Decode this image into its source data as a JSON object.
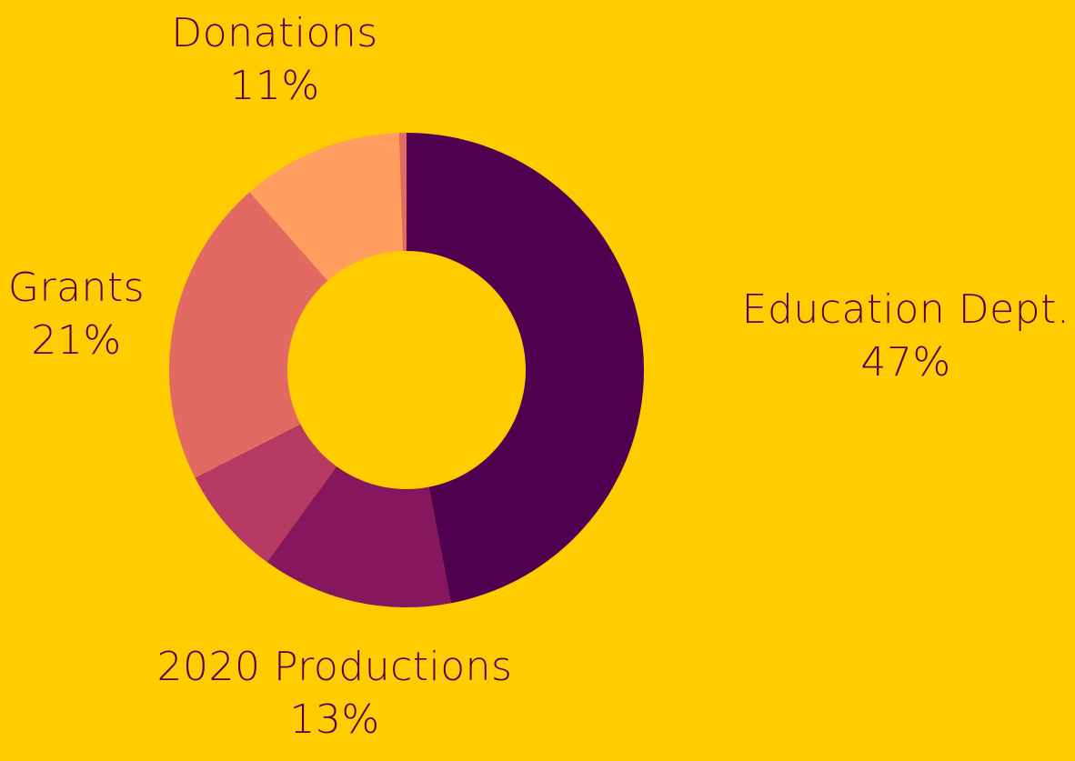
{
  "chart_data": {
    "type": "pie",
    "donut": true,
    "background": "#FFCC00",
    "label_color": "#4F0150",
    "slices": [
      {
        "label": "Education Dept.",
        "value": 47,
        "value_label": "47%",
        "color": "#4F0150"
      },
      {
        "label": "2020 Productions",
        "value": 13,
        "value_label": "13%",
        "color": "#86175E"
      },
      {
        "label": "",
        "value": 7.5,
        "value_label": "",
        "color": "#B73A62"
      },
      {
        "label": "Grants",
        "value": 21,
        "value_label": "21%",
        "color": "#E36A63"
      },
      {
        "label": "Donations",
        "value": 11,
        "value_label": "11%",
        "color": "#FF9E5F"
      },
      {
        "label": "",
        "value": 0.5,
        "value_label": "",
        "color": "#E36A63"
      }
    ]
  }
}
